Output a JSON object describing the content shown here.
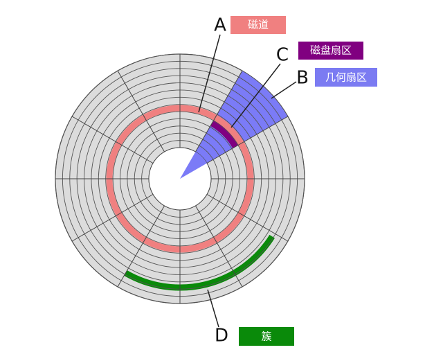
{
  "labels": [
    {
      "letter": "A",
      "text": "磁道"
    },
    {
      "letter": "C",
      "text": "磁盘扇区"
    },
    {
      "letter": "B",
      "text": "几何扇区"
    },
    {
      "letter": "D",
      "text": "簇"
    }
  ]
}
